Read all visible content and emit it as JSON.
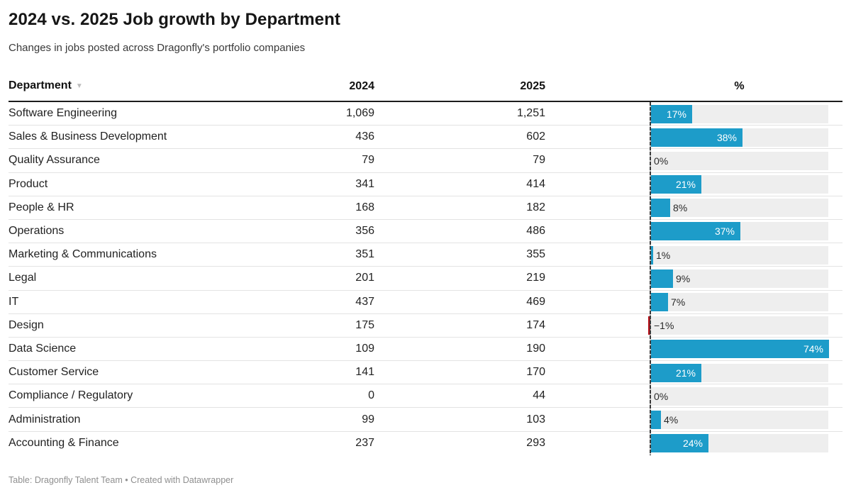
{
  "header": {
    "title": "2024 vs. 2025 Job growth by Department",
    "subtitle": "Changes in jobs posted across Dragonfly's portfolio companies"
  },
  "table": {
    "columns": {
      "department": "Department",
      "y2024": "2024",
      "y2025": "2025",
      "pct": "%"
    },
    "sort_icon": "▼",
    "rows": [
      {
        "dept": "Software Engineering",
        "y2024": "1,069",
        "y2025": "1,251",
        "pct": 17,
        "pct_label": "17%"
      },
      {
        "dept": "Sales & Business Development",
        "y2024": "436",
        "y2025": "602",
        "pct": 38,
        "pct_label": "38%"
      },
      {
        "dept": "Quality Assurance",
        "y2024": "79",
        "y2025": "79",
        "pct": 0,
        "pct_label": "0%"
      },
      {
        "dept": "Product",
        "y2024": "341",
        "y2025": "414",
        "pct": 21,
        "pct_label": "21%"
      },
      {
        "dept": "People & HR",
        "y2024": "168",
        "y2025": "182",
        "pct": 8,
        "pct_label": "8%"
      },
      {
        "dept": "Operations",
        "y2024": "356",
        "y2025": "486",
        "pct": 37,
        "pct_label": "37%"
      },
      {
        "dept": "Marketing & Communications",
        "y2024": "351",
        "y2025": "355",
        "pct": 1,
        "pct_label": "1%"
      },
      {
        "dept": "Legal",
        "y2024": "201",
        "y2025": "219",
        "pct": 9,
        "pct_label": "9%"
      },
      {
        "dept": "IT",
        "y2024": "437",
        "y2025": "469",
        "pct": 7,
        "pct_label": "7%"
      },
      {
        "dept": "Design",
        "y2024": "175",
        "y2025": "174",
        "pct": -1,
        "pct_label": "−1%"
      },
      {
        "dept": "Data Science",
        "y2024": "109",
        "y2025": "190",
        "pct": 74,
        "pct_label": "74%"
      },
      {
        "dept": "Customer Service",
        "y2024": "141",
        "y2025": "170",
        "pct": 21,
        "pct_label": "21%"
      },
      {
        "dept": "Compliance / Regulatory",
        "y2024": "0",
        "y2025": "44",
        "pct": 0,
        "pct_label": "0%"
      },
      {
        "dept": "Administration",
        "y2024": "99",
        "y2025": "103",
        "pct": 4,
        "pct_label": "4%"
      },
      {
        "dept": "Accounting & Finance",
        "y2024": "237",
        "y2025": "293",
        "pct": 24,
        "pct_label": "24%"
      }
    ]
  },
  "chart_data": {
    "type": "table",
    "title": "2024 vs. 2025 Job growth by Department",
    "subtitle": "Changes in jobs posted across Dragonfly's portfolio companies",
    "columns": [
      "Department",
      "2024",
      "2025",
      "%"
    ],
    "rows": [
      {
        "department": "Software Engineering",
        "y2024": 1069,
        "y2025": 1251,
        "pct_change": 17
      },
      {
        "department": "Sales & Business Development",
        "y2024": 436,
        "y2025": 602,
        "pct_change": 38
      },
      {
        "department": "Quality Assurance",
        "y2024": 79,
        "y2025": 79,
        "pct_change": 0
      },
      {
        "department": "Product",
        "y2024": 341,
        "y2025": 414,
        "pct_change": 21
      },
      {
        "department": "People & HR",
        "y2024": 168,
        "y2025": 182,
        "pct_change": 8
      },
      {
        "department": "Operations",
        "y2024": 356,
        "y2025": 486,
        "pct_change": 37
      },
      {
        "department": "Marketing & Communications",
        "y2024": 351,
        "y2025": 355,
        "pct_change": 1
      },
      {
        "department": "Legal",
        "y2024": 201,
        "y2025": 219,
        "pct_change": 9
      },
      {
        "department": "IT",
        "y2024": 437,
        "y2025": 469,
        "pct_change": 7
      },
      {
        "department": "Design",
        "y2024": 175,
        "y2025": 174,
        "pct_change": -1
      },
      {
        "department": "Data Science",
        "y2024": 109,
        "y2025": 190,
        "pct_change": 74
      },
      {
        "department": "Customer Service",
        "y2024": 141,
        "y2025": 170,
        "pct_change": 21
      },
      {
        "department": "Compliance / Regulatory",
        "y2024": 0,
        "y2025": 44,
        "pct_change": 0
      },
      {
        "department": "Administration",
        "y2024": 99,
        "y2025": 103,
        "pct_change": 4
      },
      {
        "department": "Accounting & Finance",
        "y2024": 237,
        "y2025": 293,
        "pct_change": 24
      }
    ],
    "bar_axis": {
      "min": -1,
      "max": 74,
      "zero_line": true
    },
    "layout": {
      "bar_column_header": "%",
      "grid": "row-separators",
      "legend": "none"
    },
    "colors": {
      "positive_bar": "#1d9cc9",
      "negative_bar": "#b5121b",
      "bar_track": "#eeeeee"
    }
  },
  "footer": {
    "text": "Table: Dragonfly Talent Team • Created with Datawrapper"
  }
}
